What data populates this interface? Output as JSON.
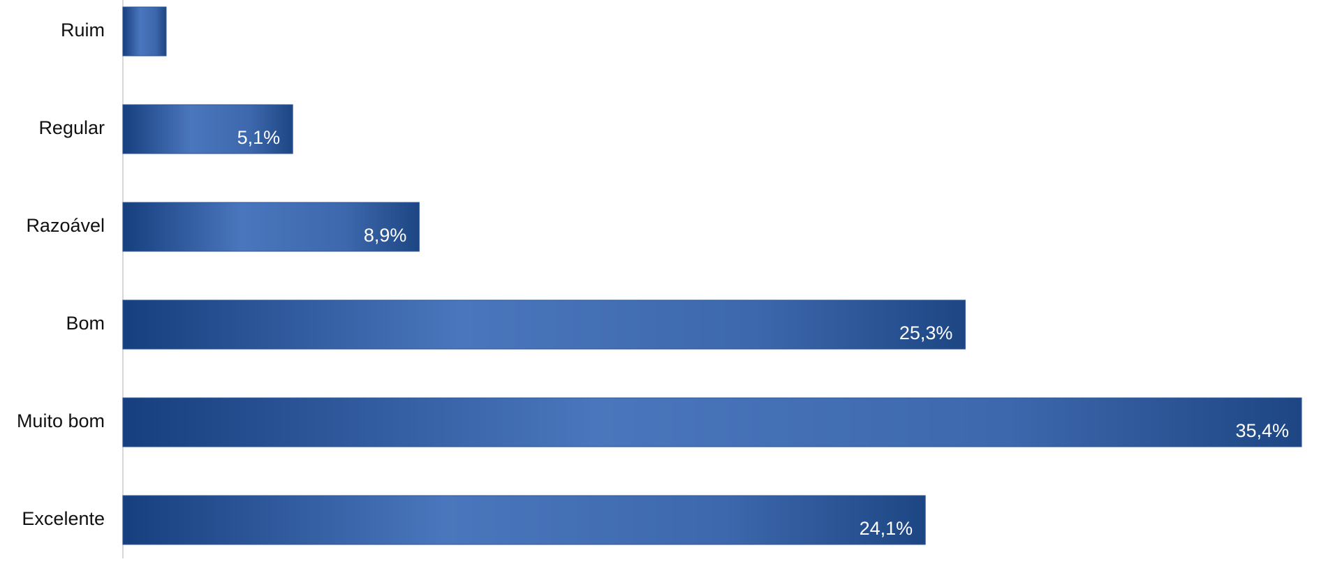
{
  "chart_data": {
    "type": "bar",
    "orientation": "horizontal",
    "categories": [
      "Ruim",
      "Regular",
      "Razoável",
      "Bom",
      "Muito bom",
      "Excelente"
    ],
    "values": [
      1.3,
      5.1,
      8.9,
      25.3,
      35.4,
      24.1
    ],
    "value_labels": [
      null,
      "5,1%",
      "8,9%",
      "25,3%",
      "35,4%",
      "24,1%"
    ],
    "color": "#2a5599"
  }
}
